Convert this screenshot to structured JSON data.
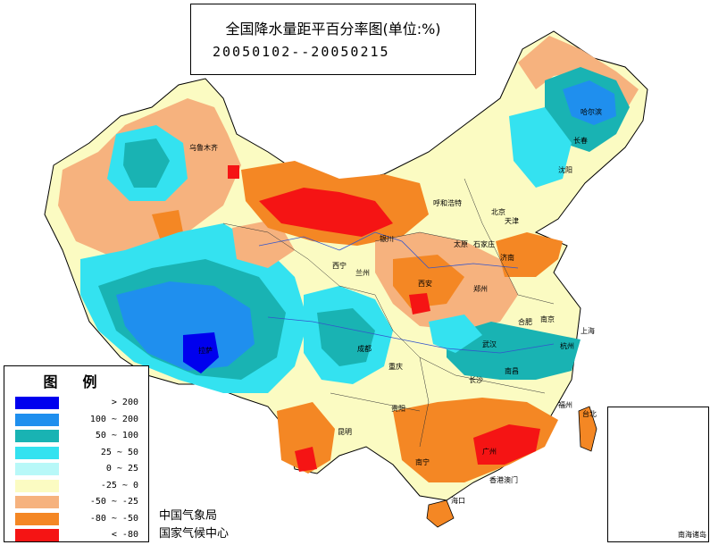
{
  "title": {
    "line1": "全国降水量距平百分率图(单位:%)",
    "line2": "20050102--20050215"
  },
  "legend": {
    "title": "图例",
    "items": [
      {
        "label": "> 200",
        "color": "#0000ee"
      },
      {
        "label": "100 ~ 200",
        "color": "#1f8fee"
      },
      {
        "label": "50 ~ 100",
        "color": "#19b3b3"
      },
      {
        "label": "25 ~ 50",
        "color": "#34e2f0"
      },
      {
        "label": "0 ~ 25",
        "color": "#b8f8f8"
      },
      {
        "label": "-25 ~ 0",
        "color": "#fbfbc2"
      },
      {
        "label": "-50 ~ -25",
        "color": "#f6b27e"
      },
      {
        "label": "-80 ~ -50",
        "color": "#f48724"
      },
      {
        "label": "< -80",
        "color": "#f51414"
      }
    ]
  },
  "agency": {
    "line1": "中国气象局",
    "line2": "国家气候中心"
  },
  "inset_label": "南海诸岛",
  "cities": [
    "哈尔滨",
    "长春",
    "沈阳",
    "乌鲁木齐",
    "呼和浩特",
    "北京",
    "天津",
    "太原",
    "石家庄",
    "济南",
    "银川",
    "兰州",
    "西宁",
    "郑州",
    "西安",
    "合肥",
    "南京",
    "上海",
    "武汉",
    "杭州",
    "成都",
    "重庆",
    "长沙",
    "南昌",
    "福州",
    "台北",
    "拉萨",
    "贵阳",
    "昆明",
    "南宁",
    "广州",
    "香港澳门",
    "海口"
  ]
}
